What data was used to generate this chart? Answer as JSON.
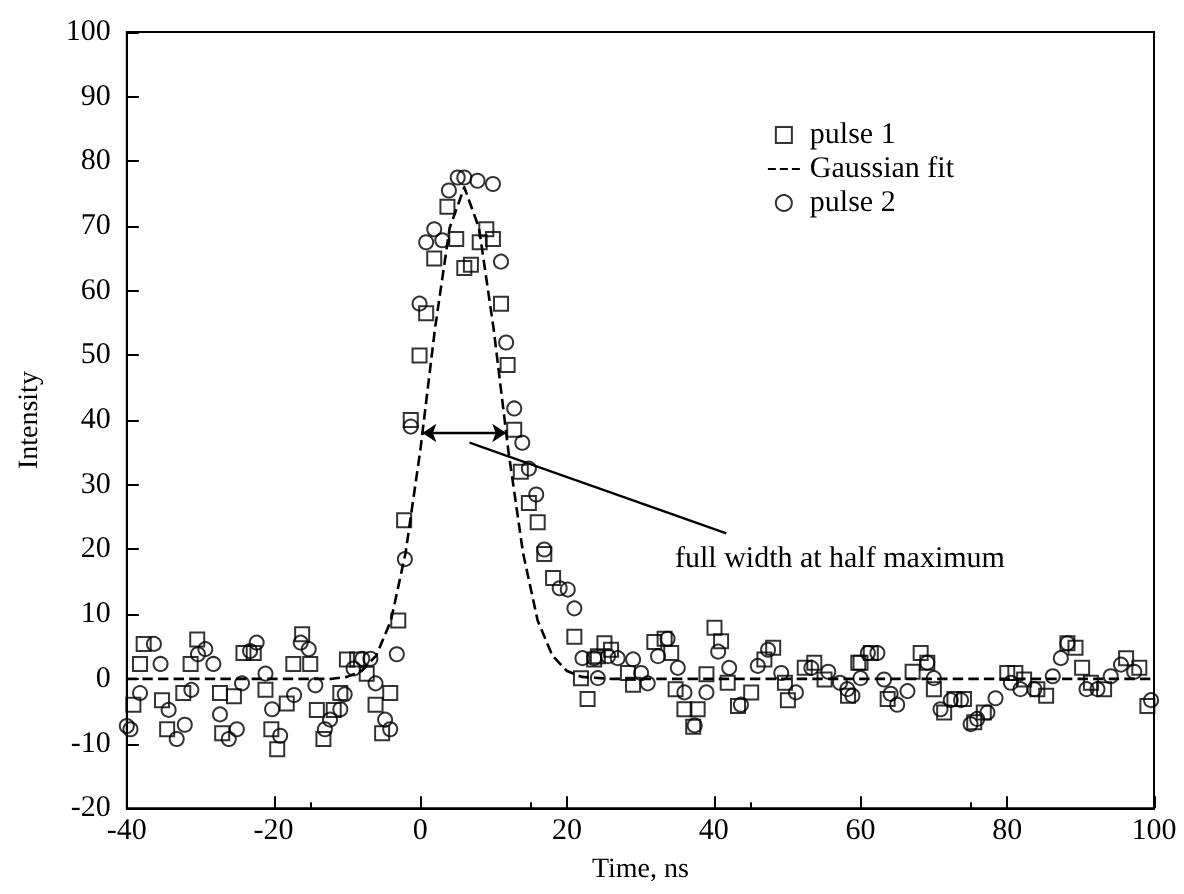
{
  "chart_data": {
    "type": "scatter",
    "xlabel": "Time, ns",
    "ylabel": "Intensity",
    "xlim": [
      -40,
      100
    ],
    "xticks": [
      -40,
      -20,
      0,
      20,
      40,
      60,
      80,
      100
    ],
    "ylim": [
      -20,
      100
    ],
    "yticks": [
      -20,
      -10,
      0,
      10,
      20,
      30,
      40,
      50,
      60,
      70,
      80,
      90,
      100
    ],
    "grid": false,
    "legend": "top right",
    "annotations": [
      "full width at half maximum"
    ],
    "series": [
      {
        "name": "pulse 1",
        "marker": "square",
        "color": "#000000",
        "x": [
          -39.1,
          -38.2,
          -37.7,
          -35.2,
          -34.5,
          -32.3,
          -31.3,
          -30.4,
          -27.3,
          -27.0,
          -25.4,
          -24.1,
          -22.7,
          -21.1,
          -20.3,
          -19.5,
          -18.2,
          -17.3,
          -16.1,
          -15.0,
          -14.1,
          -13.2,
          -11.8,
          -10.9,
          -10.0,
          -8.6,
          -7.3,
          -6.1,
          -5.2,
          -4.1,
          -3.0,
          -2.2,
          -1.3,
          -0.1,
          0.8,
          1.9,
          3.7,
          4.9,
          6.0,
          6.9,
          8.1,
          9.0,
          9.9,
          11.0,
          11.9,
          12.8,
          13.7,
          14.8,
          16.0,
          16.9,
          18.1,
          21.0,
          21.9,
          22.8,
          23.7,
          24.2,
          25.1,
          26.0,
          28.3,
          29.0,
          31.9,
          33.3,
          34.2,
          34.8,
          36.0,
          37.2,
          37.8,
          39.0,
          40.1,
          41.0,
          41.9,
          43.3,
          45.1,
          46.9,
          48.1,
          49.7,
          50.1,
          52.4,
          53.7,
          55.1,
          58.3,
          59.7,
          60.0,
          61.4,
          63.7,
          67.1,
          68.2,
          69.1,
          70.0,
          71.4,
          72.8,
          74.1,
          75.5,
          76.8,
          80.0,
          81.1,
          82.3,
          84.1,
          85.3,
          88.2,
          89.3,
          90.2,
          91.4,
          93.2,
          96.2,
          98.0,
          99.1
        ],
        "values": [
          -4.0,
          2.3,
          5.4,
          -3.3,
          -7.8,
          -2.2,
          2.3,
          6.1,
          -2.2,
          -8.4,
          -2.7,
          4.0,
          4.0,
          -1.7,
          -7.8,
          -10.9,
          -3.8,
          2.3,
          6.9,
          2.3,
          -4.8,
          -9.3,
          -4.8,
          -2.2,
          3.0,
          3.0,
          0.8,
          -4.0,
          -8.4,
          -2.2,
          9.0,
          24.5,
          40,
          50,
          56.5,
          65,
          73,
          68,
          63.5,
          64,
          67.5,
          69.5,
          68,
          58,
          48.5,
          38.5,
          32,
          27.2,
          24.2,
          19.3,
          15.6,
          6.5,
          0.1,
          -3.1,
          3.0,
          3.5,
          5.5,
          4.5,
          0.9,
          -0.9,
          5.7,
          6.2,
          4.0,
          -1.6,
          -4.7,
          -7.4,
          -4.7,
          0.7,
          7.9,
          5.8,
          -0.6,
          -4.2,
          -2.1,
          3.0,
          4.8,
          -0.6,
          -3.3,
          1.7,
          2.5,
          -0.1,
          -2.6,
          2.5,
          2.5,
          4.0,
          -3.1,
          1.1,
          4.0,
          2.5,
          -1.6,
          -5.2,
          -3.1,
          -3.1,
          -6.7,
          -5.2,
          0.9,
          0.9,
          -0.1,
          -1.6,
          -2.6,
          5.5,
          4.8,
          1.7,
          -0.6,
          -1.6,
          3.2,
          1.7,
          -4.2
        ]
      },
      {
        "name": "Gaussian fit",
        "type": "line",
        "marker": "none",
        "line_style": "dashed",
        "color": "#000000",
        "x": [
          -40,
          -12,
          -10,
          -8,
          -6,
          -4,
          -2,
          0,
          2,
          4,
          6,
          8,
          10,
          12,
          14,
          16,
          18,
          20,
          22,
          26,
          100
        ],
        "values": [
          0,
          0,
          0.3,
          1.2,
          3.6,
          9.0,
          19.5,
          35.3,
          54.1,
          69.7,
          76,
          69.7,
          54.1,
          35.3,
          19.5,
          9.0,
          3.6,
          1.2,
          0.3,
          0,
          0
        ]
      },
      {
        "name": "pulse 2",
        "marker": "circle",
        "color": "#000000",
        "x": [
          -40.0,
          -39.5,
          -38.2,
          -36.3,
          -35.4,
          -34.3,
          -33.2,
          -32.1,
          -31.2,
          -30.3,
          -29.3,
          -28.2,
          -27.3,
          -26.1,
          -25.0,
          -24.3,
          -23.2,
          -22.3,
          -21.1,
          -20.2,
          -19.1,
          -17.2,
          -16.3,
          -15.2,
          -14.3,
          -13.0,
          -12.3,
          -10.9,
          -10.3,
          -9.1,
          -7.9,
          -6.8,
          -6.1,
          -4.8,
          -4.1,
          -3.2,
          -2.1,
          -1.3,
          -0.1,
          0.8,
          1.9,
          3.0,
          3.9,
          5.1,
          6.0,
          7.8,
          9.9,
          11.0,
          11.7,
          12.8,
          13.9,
          14.8,
          15.8,
          16.9,
          19.0,
          20.1,
          21.0,
          22.1,
          23.7,
          24.2,
          25.6,
          26.9,
          29.0,
          30.1,
          31.0,
          32.4,
          33.7,
          35.1,
          36.0,
          37.4,
          39.0,
          40.6,
          42.1,
          43.7,
          46.0,
          47.4,
          49.2,
          51.2,
          53.3,
          55.6,
          57.2,
          58.2,
          58.9,
          60.0,
          61.0,
          62.3,
          63.2,
          64.1,
          65.0,
          66.4,
          69.1,
          70.0,
          70.9,
          72.3,
          73.7,
          75.0,
          75.9,
          77.3,
          78.4,
          80.5,
          81.8,
          83.7,
          86.2,
          87.3,
          88.2,
          90.8,
          92.3,
          94.1,
          95.5,
          97.3,
          99.6
        ],
        "values": [
          -7.3,
          -7.8,
          -2.2,
          5.4,
          2.3,
          -4.8,
          -9.3,
          -7.1,
          -1.7,
          3.8,
          4.6,
          2.3,
          -5.5,
          -9.3,
          -7.8,
          -0.7,
          4.3,
          5.6,
          0.8,
          -4.7,
          -8.8,
          -2.5,
          5.6,
          4.6,
          -1.0,
          -7.8,
          -6.3,
          -4.7,
          -2.4,
          1.6,
          3.1,
          3.1,
          -0.7,
          -6.3,
          -7.8,
          3.8,
          18.5,
          39,
          58,
          67.5,
          69.5,
          67.8,
          75.5,
          77.5,
          77.5,
          77,
          76.5,
          64.5,
          52,
          41.8,
          36.5,
          32.5,
          28.5,
          20,
          14,
          13.8,
          10.9,
          3.2,
          3.2,
          0.1,
          3.5,
          3.2,
          3.0,
          0.9,
          -0.7,
          3.5,
          6.2,
          1.7,
          -2.1,
          -7.2,
          -2.1,
          4.2,
          1.7,
          -4.0,
          2.0,
          4.5,
          0.9,
          -2.1,
          1.7,
          1.1,
          -0.6,
          -1.6,
          -2.6,
          0.1,
          4.0,
          4.0,
          -0.1,
          -2.3,
          -4.0,
          -1.9,
          2.5,
          0.1,
          -4.7,
          -3.3,
          -3.3,
          -7.0,
          -6.2,
          -5.2,
          -3.0,
          -0.6,
          -1.6,
          -1.6,
          0.4,
          3.2,
          5.5,
          -1.6,
          -1.6,
          0.4,
          2.2,
          1.1,
          -3.3
        ]
      }
    ]
  }
}
